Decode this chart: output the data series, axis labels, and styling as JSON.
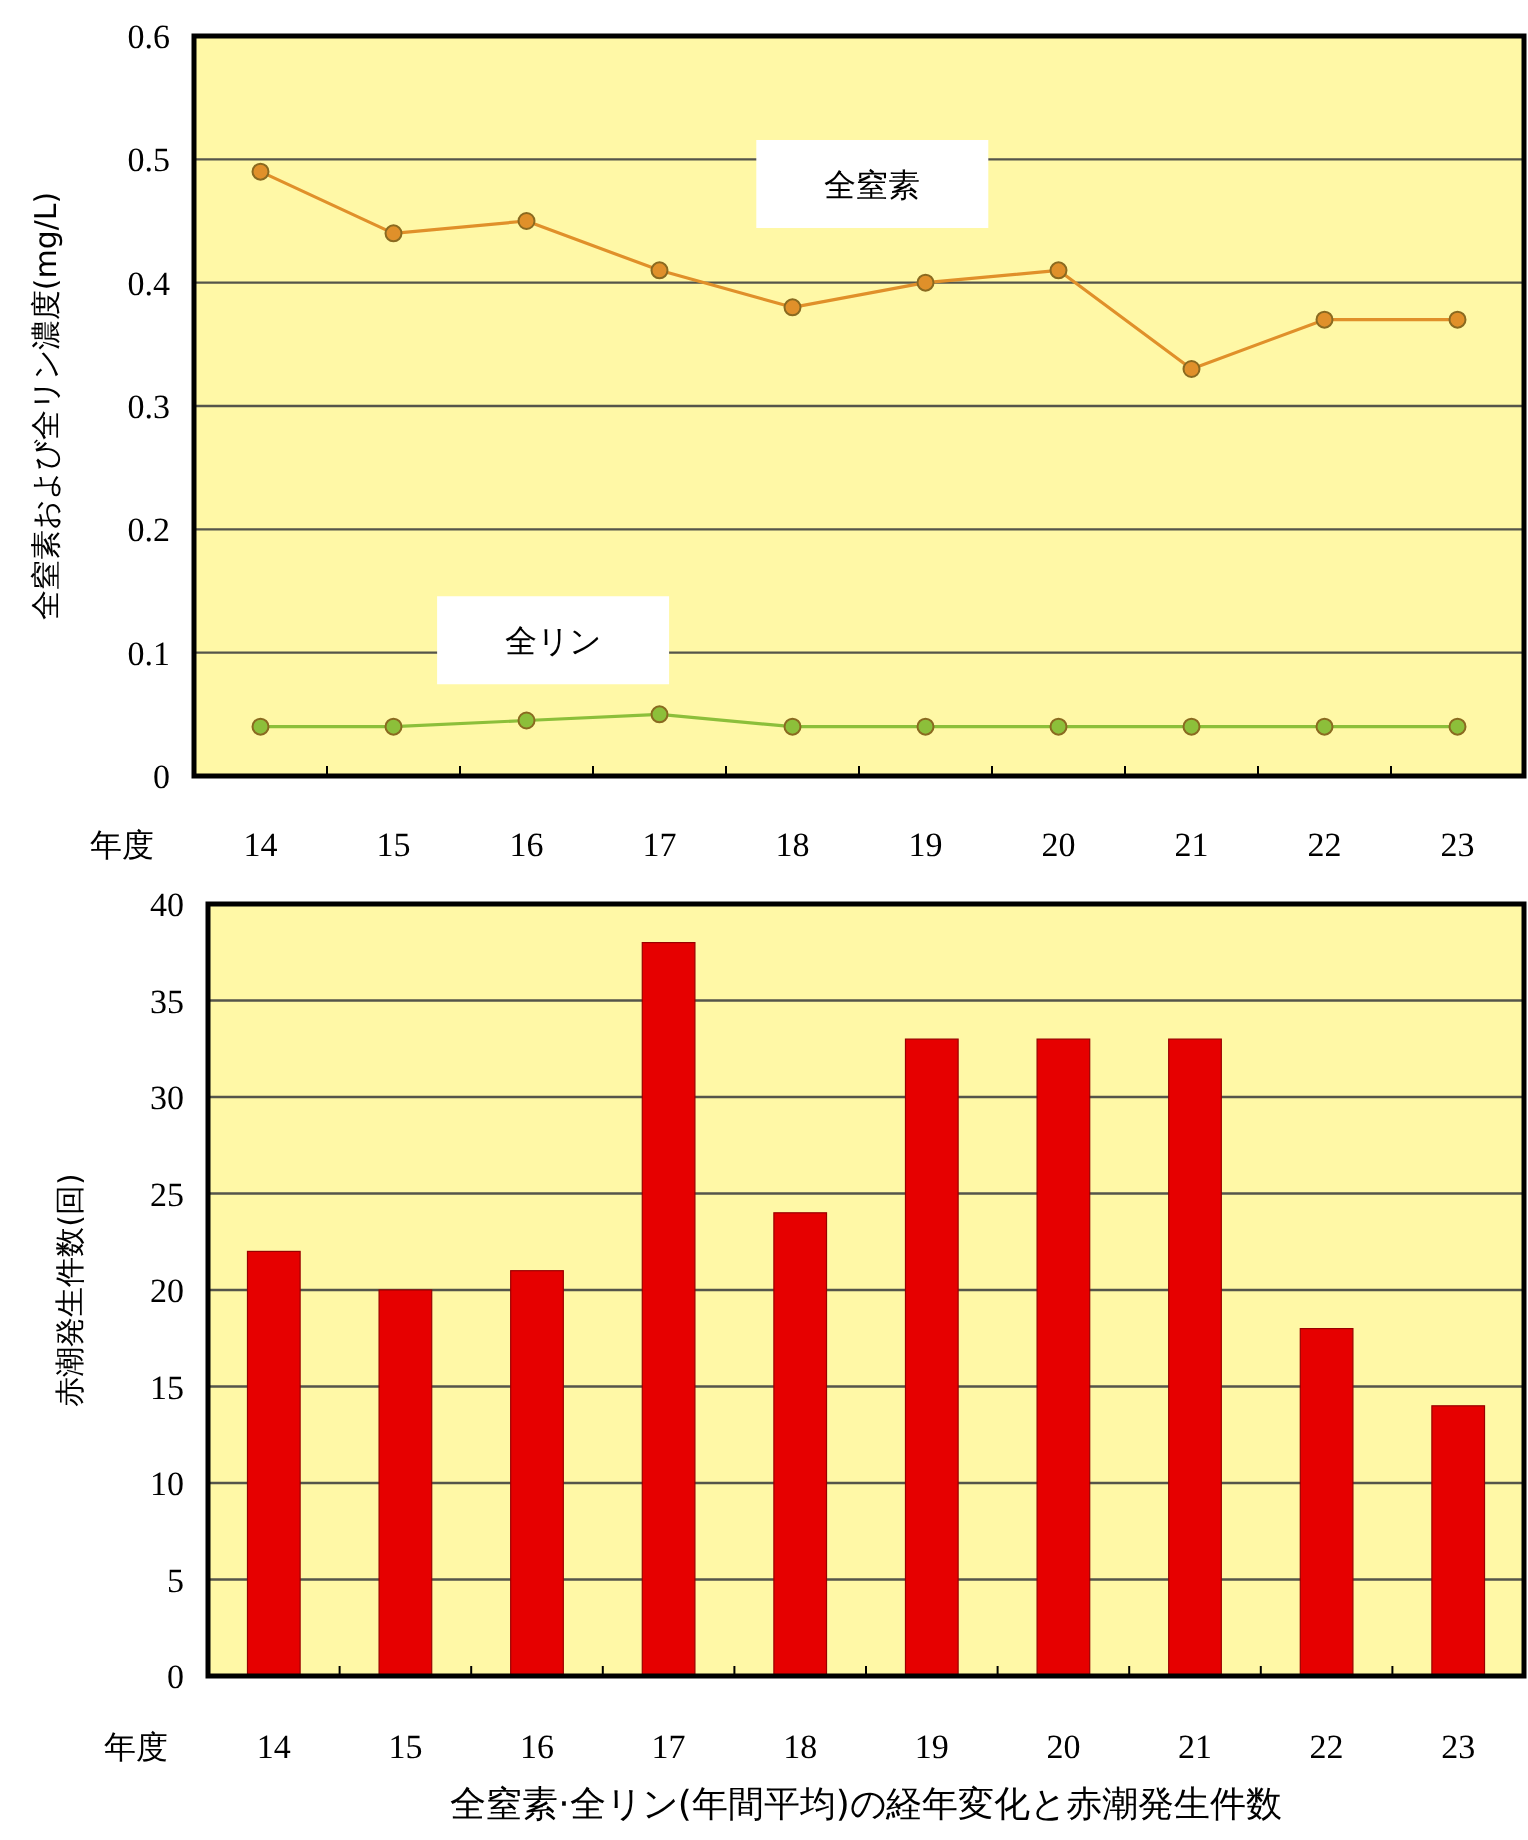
{
  "chart_data": [
    {
      "type": "line",
      "ylabel": "全窒素および全リン濃度(mg/L)",
      "xlabel": "年度",
      "categories": [
        "14",
        "15",
        "16",
        "17",
        "18",
        "19",
        "20",
        "21",
        "22",
        "23"
      ],
      "series": [
        {
          "name": "全窒素",
          "color": "#e0902a",
          "values": [
            0.49,
            0.44,
            0.45,
            0.41,
            0.38,
            0.4,
            0.41,
            0.33,
            0.37,
            0.37
          ]
        },
        {
          "name": "全リン",
          "color": "#8cbf3a",
          "values": [
            0.04,
            0.04,
            0.045,
            0.05,
            0.04,
            0.04,
            0.04,
            0.04,
            0.04,
            0.04
          ]
        }
      ],
      "ylim": [
        0,
        0.6
      ],
      "yticks": [
        0,
        0.1,
        0.2,
        0.3,
        0.4,
        0.5,
        0.6
      ],
      "grid": "y",
      "legend": false,
      "marker": "circle",
      "line_style": "solid"
    },
    {
      "type": "bar",
      "ylabel": "赤潮発生件数(回)",
      "xlabel": "年度",
      "categories": [
        "14",
        "15",
        "16",
        "17",
        "18",
        "19",
        "20",
        "21",
        "22",
        "23"
      ],
      "values": [
        22,
        20,
        21,
        38,
        24,
        33,
        33,
        33,
        18,
        14
      ],
      "color": "#e60000",
      "ylim": [
        0,
        40
      ],
      "yticks": [
        0,
        5,
        10,
        15,
        20,
        25,
        30,
        35,
        40
      ],
      "grid": "y",
      "annotations": [
        "全窒素·全リン(年間平均)の経年変化と赤潮発生件数"
      ]
    }
  ]
}
